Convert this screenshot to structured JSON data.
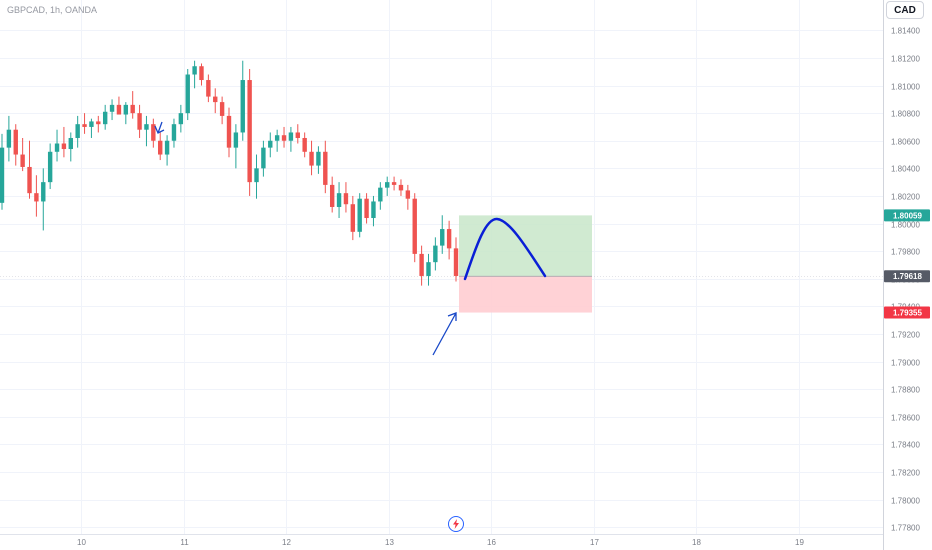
{
  "header": {
    "title": "GBPCAD, 1h, OANDA"
  },
  "currency_button": {
    "label": "CAD"
  },
  "colors": {
    "up": "#26a69a",
    "down": "#ef5350",
    "profit_zone": "#c8e6c9",
    "loss_zone": "#ffcdd2",
    "drawing": "#1848c8"
  },
  "icons": {
    "goto_realtime": "lightning-icon"
  },
  "chart_data": {
    "type": "candlestick",
    "title": "GBPCAD, 1h, OANDA",
    "x_ticks": [
      "10",
      "11",
      "12",
      "13",
      "16",
      "17",
      "18",
      "19"
    ],
    "y_ticks": [
      "1.81400",
      "1.81200",
      "1.81000",
      "1.80800",
      "1.80600",
      "1.80400",
      "1.80200",
      "1.80000",
      "1.79800",
      "1.79600",
      "1.79400",
      "1.79200",
      "1.79000",
      "1.78800",
      "1.78600",
      "1.78400",
      "1.78200",
      "1.78000",
      "1.77800"
    ],
    "ylim": [
      1.7775,
      1.8162
    ],
    "grid": true,
    "price_tags": [
      {
        "label": "1.80059",
        "role": "take-profit",
        "color": "#26a69a"
      },
      {
        "label": "1.79618",
        "role": "last-price",
        "color": "#555a66"
      },
      {
        "label": "1.79355",
        "role": "stop-loss",
        "color": "#f23645"
      }
    ],
    "position": {
      "type": "long",
      "entry": 1.79618,
      "target": 1.80059,
      "stop": 1.79355
    },
    "candles": [
      [
        1.8015,
        1.8065,
        1.801,
        1.8055
      ],
      [
        1.8055,
        1.8078,
        1.8045,
        1.8068
      ],
      [
        1.8068,
        1.8072,
        1.8042,
        1.805
      ],
      [
        1.805,
        1.8062,
        1.8038,
        1.8041
      ],
      [
        1.8041,
        1.806,
        1.8018,
        1.8022
      ],
      [
        1.8022,
        1.8035,
        1.8005,
        1.8016
      ],
      [
        1.8016,
        1.804,
        1.7995,
        1.803
      ],
      [
        1.803,
        1.8058,
        1.8025,
        1.8052
      ],
      [
        1.8052,
        1.8068,
        1.8045,
        1.8058
      ],
      [
        1.8058,
        1.807,
        1.8048,
        1.8054
      ],
      [
        1.8054,
        1.8066,
        1.8045,
        1.8062
      ],
      [
        1.8062,
        1.8078,
        1.8055,
        1.8072
      ],
      [
        1.8072,
        1.808,
        1.8065,
        1.807
      ],
      [
        1.807,
        1.8076,
        1.8062,
        1.8074
      ],
      [
        1.8074,
        1.8078,
        1.8066,
        1.8072
      ],
      [
        1.8072,
        1.8086,
        1.8068,
        1.8081
      ],
      [
        1.8081,
        1.809,
        1.8075,
        1.8086
      ],
      [
        1.8086,
        1.8092,
        1.808,
        1.8079
      ],
      [
        1.8079,
        1.8088,
        1.8072,
        1.8086
      ],
      [
        1.8086,
        1.8096,
        1.8076,
        1.808
      ],
      [
        1.808,
        1.8086,
        1.8062,
        1.8068
      ],
      [
        1.8068,
        1.8078,
        1.8056,
        1.8072
      ],
      [
        1.8072,
        1.8076,
        1.8055,
        1.806
      ],
      [
        1.806,
        1.8066,
        1.8046,
        1.805
      ],
      [
        1.805,
        1.8064,
        1.8042,
        1.806
      ],
      [
        1.806,
        1.8076,
        1.8055,
        1.8072
      ],
      [
        1.8072,
        1.8086,
        1.8066,
        1.808
      ],
      [
        1.808,
        1.8112,
        1.8075,
        1.8108
      ],
      [
        1.8108,
        1.8118,
        1.8098,
        1.8114
      ],
      [
        1.8114,
        1.8116,
        1.81,
        1.8104
      ],
      [
        1.8104,
        1.8108,
        1.8088,
        1.8092
      ],
      [
        1.8092,
        1.8098,
        1.808,
        1.8088
      ],
      [
        1.8088,
        1.8092,
        1.8072,
        1.8078
      ],
      [
        1.8078,
        1.8084,
        1.8048,
        1.8055
      ],
      [
        1.8055,
        1.8072,
        1.804,
        1.8066
      ],
      [
        1.8066,
        1.8118,
        1.806,
        1.8104
      ],
      [
        1.8104,
        1.8112,
        1.802,
        1.803
      ],
      [
        1.803,
        1.805,
        1.8018,
        1.804
      ],
      [
        1.804,
        1.806,
        1.8034,
        1.8055
      ],
      [
        1.8055,
        1.8066,
        1.8048,
        1.806
      ],
      [
        1.806,
        1.8068,
        1.8052,
        1.8064
      ],
      [
        1.8064,
        1.807,
        1.8055,
        1.806
      ],
      [
        1.806,
        1.807,
        1.8052,
        1.8066
      ],
      [
        1.8066,
        1.8072,
        1.8058,
        1.8062
      ],
      [
        1.8062,
        1.8066,
        1.8048,
        1.8052
      ],
      [
        1.8052,
        1.806,
        1.8035,
        1.8042
      ],
      [
        1.8042,
        1.8056,
        1.8036,
        1.8052
      ],
      [
        1.8052,
        1.806,
        1.8022,
        1.8028
      ],
      [
        1.8028,
        1.8034,
        1.8008,
        1.8012
      ],
      [
        1.8012,
        1.803,
        1.8004,
        1.8022
      ],
      [
        1.8022,
        1.803,
        1.8008,
        1.8014
      ],
      [
        1.8014,
        1.802,
        1.7988,
        1.7994
      ],
      [
        1.7994,
        1.8022,
        1.799,
        1.8018
      ],
      [
        1.8018,
        1.8022,
        1.8,
        1.8004
      ],
      [
        1.8004,
        1.802,
        1.7998,
        1.8016
      ],
      [
        1.8016,
        1.803,
        1.801,
        1.8026
      ],
      [
        1.8026,
        1.8034,
        1.802,
        1.803
      ],
      [
        1.803,
        1.8034,
        1.8024,
        1.8028
      ],
      [
        1.8028,
        1.8032,
        1.802,
        1.8024
      ],
      [
        1.8024,
        1.8028,
        1.801,
        1.8018
      ],
      [
        1.8018,
        1.8022,
        1.7972,
        1.7978
      ],
      [
        1.7978,
        1.7984,
        1.7955,
        1.7962
      ],
      [
        1.7962,
        1.7978,
        1.7955,
        1.7972
      ],
      [
        1.7972,
        1.799,
        1.7966,
        1.7984
      ],
      [
        1.7984,
        1.8006,
        1.7978,
        1.7996
      ],
      [
        1.7996,
        1.8002,
        1.7974,
        1.7982
      ],
      [
        1.7982,
        1.799,
        1.7958,
        1.7962
      ]
    ]
  }
}
